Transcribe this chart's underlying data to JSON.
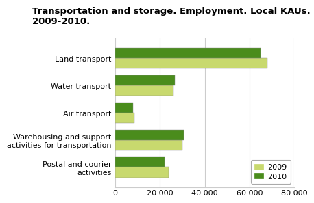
{
  "title": "Transportation and storage. Employment. Local KAUs. 2009-2010.",
  "categories": [
    "Land transport",
    "Water transport",
    "Air transport",
    "Warehousing and support\nactivities for transportation",
    "Postal and courier\nactivities"
  ],
  "values_2009": [
    68000,
    26000,
    8500,
    30000,
    24000
  ],
  "values_2010": [
    65000,
    26500,
    8000,
    30500,
    22000
  ],
  "color_2009": "#c8d96e",
  "color_2010": "#4a8c1c",
  "xlim": [
    0,
    80000
  ],
  "xticks": [
    0,
    20000,
    40000,
    60000,
    80000
  ],
  "xtick_labels": [
    "0",
    "20 000",
    "40 000",
    "60 000",
    "80 000"
  ],
  "bar_height": 0.38,
  "legend_labels": [
    "2009",
    "2010"
  ],
  "background_color": "#ffffff",
  "grid_color": "#cccccc",
  "title_fontsize": 9.5,
  "tick_fontsize": 8,
  "label_fontsize": 8
}
